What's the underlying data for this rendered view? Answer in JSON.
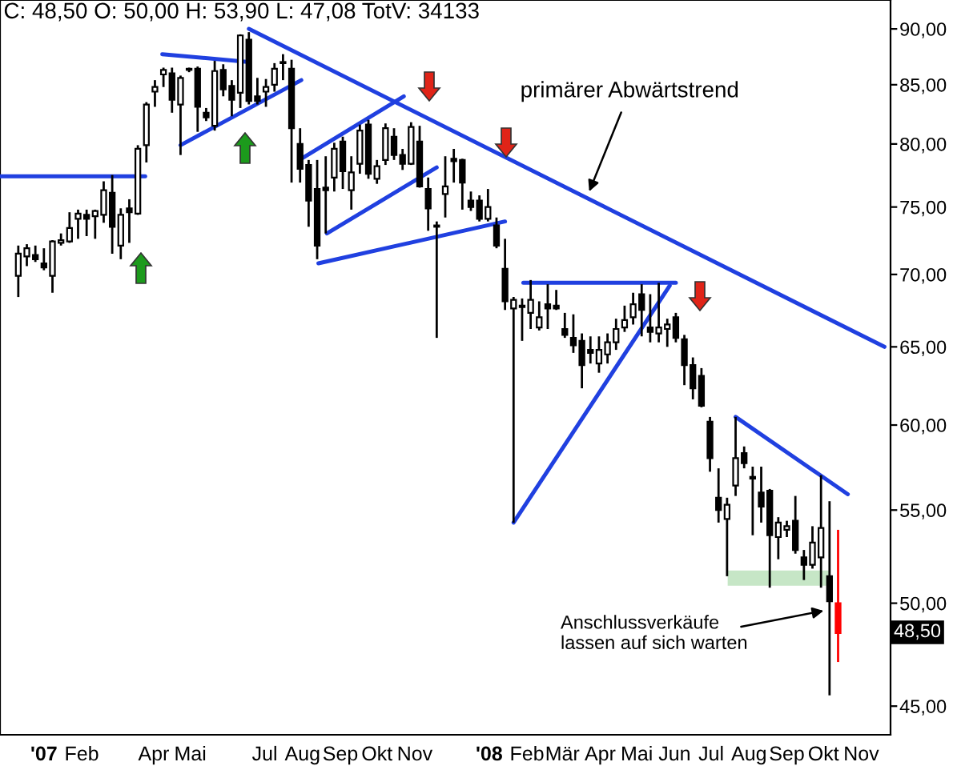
{
  "chart_data": {
    "type": "candlestick",
    "title": "C: 48,50 O: 50,00 H: 53,90 L: 47,08 TotV: 34133",
    "x": [
      "2006-12-11",
      "2006-12-18",
      "2006-12-25",
      "2007-01-01",
      "2007-01-08",
      "2007-01-15",
      "2007-01-22",
      "2007-01-29",
      "2007-02-05",
      "2007-02-12",
      "2007-02-19",
      "2007-02-26",
      "2007-03-05",
      "2007-03-12",
      "2007-03-19",
      "2007-03-26",
      "2007-04-02",
      "2007-04-09",
      "2007-04-16",
      "2007-04-23",
      "2007-04-30",
      "2007-05-07",
      "2007-05-14",
      "2007-05-21",
      "2007-05-28",
      "2007-06-04",
      "2007-06-11",
      "2007-06-18",
      "2007-06-25",
      "2007-07-02",
      "2007-07-09",
      "2007-07-16",
      "2007-07-23",
      "2007-07-30",
      "2007-08-06",
      "2007-08-13",
      "2007-08-20",
      "2007-08-27",
      "2007-09-03",
      "2007-09-10",
      "2007-09-17",
      "2007-09-24",
      "2007-10-01",
      "2007-10-08",
      "2007-10-15",
      "2007-10-22",
      "2007-10-29",
      "2007-11-05",
      "2007-11-12",
      "2007-11-19",
      "2007-11-26",
      "2007-12-03",
      "2007-12-10",
      "2007-12-17",
      "2007-12-24",
      "2007-12-31",
      "2008-01-07",
      "2008-01-14",
      "2008-01-21",
      "2008-01-28",
      "2008-02-04",
      "2008-02-11",
      "2008-02-18",
      "2008-02-25",
      "2008-03-03",
      "2008-03-10",
      "2008-03-17",
      "2008-03-24",
      "2008-03-31",
      "2008-04-07",
      "2008-04-14",
      "2008-04-21",
      "2008-04-28",
      "2008-05-05",
      "2008-05-12",
      "2008-05-19",
      "2008-05-26",
      "2008-06-02",
      "2008-06-09",
      "2008-06-16",
      "2008-06-23",
      "2008-06-30",
      "2008-07-07",
      "2008-07-14",
      "2008-07-21",
      "2008-07-28",
      "2008-08-04",
      "2008-08-11",
      "2008-08-18",
      "2008-08-25",
      "2008-09-01",
      "2008-09-08",
      "2008-09-15",
      "2008-09-22",
      "2008-09-29",
      "2008-10-06",
      "2008-10-13"
    ],
    "ohlc": [
      [
        69.9,
        72.1,
        68.4,
        71.5
      ],
      [
        71.3,
        72.2,
        70.6,
        71.9
      ],
      [
        71.4,
        72.1,
        70.9,
        71.1
      ],
      [
        70.8,
        71.9,
        70.3,
        70.5
      ],
      [
        69.9,
        72.5,
        68.7,
        72.4
      ],
      [
        72.3,
        73.0,
        72.1,
        72.5
      ],
      [
        72.4,
        74.6,
        72.3,
        73.4
      ],
      [
        74.1,
        74.8,
        72.6,
        74.5
      ],
      [
        74.4,
        74.8,
        72.8,
        74.1
      ],
      [
        74.3,
        74.8,
        72.6,
        74.7
      ],
      [
        74.4,
        77.0,
        73.8,
        76.3
      ],
      [
        76.1,
        77.5,
        71.5,
        73.5
      ],
      [
        72.1,
        74.9,
        71.1,
        74.4
      ],
      [
        74.9,
        75.6,
        72.3,
        74.6
      ],
      [
        74.5,
        79.9,
        74.4,
        79.6
      ],
      [
        79.9,
        83.5,
        78.5,
        83.3
      ],
      [
        84.4,
        85.4,
        83.1,
        84.8
      ],
      [
        85.9,
        86.5,
        84.8,
        86.3
      ],
      [
        86.0,
        86.5,
        82.6,
        83.7
      ],
      [
        83.3,
        85.8,
        79.1,
        85.6
      ],
      [
        86.4,
        86.5,
        86.1,
        86.3
      ],
      [
        86.4,
        86.6,
        81.0,
        83.1
      ],
      [
        82.6,
        83.0,
        81.9,
        82.2
      ],
      [
        81.5,
        87.1,
        81.1,
        86.2
      ],
      [
        86.3,
        86.8,
        84.0,
        84.6
      ],
      [
        84.9,
        85.4,
        82.3,
        83.7
      ],
      [
        84.3,
        89.5,
        83.0,
        89.4
      ],
      [
        89.0,
        89.7,
        83.3,
        83.6
      ],
      [
        84.0,
        85.6,
        83.3,
        83.6
      ],
      [
        84.4,
        85.5,
        83.1,
        84.8
      ],
      [
        85.0,
        86.9,
        84.4,
        86.4
      ],
      [
        86.9,
        87.7,
        85.4,
        87.0
      ],
      [
        86.4,
        87.2,
        76.9,
        81.3
      ],
      [
        80.0,
        81.3,
        76.9,
        78.0
      ],
      [
        78.3,
        78.7,
        73.5,
        75.5
      ],
      [
        76.4,
        78.7,
        71.1,
        72.1
      ],
      [
        76.5,
        79.0,
        73.0,
        76.3
      ],
      [
        77.3,
        80.1,
        76.2,
        79.6
      ],
      [
        80.2,
        80.6,
        76.4,
        77.8
      ],
      [
        76.3,
        79.0,
        74.8,
        77.7
      ],
      [
        78.4,
        81.6,
        77.6,
        81.1
      ],
      [
        81.6,
        82.0,
        77.2,
        77.6
      ],
      [
        77.2,
        78.7,
        76.8,
        78.2
      ],
      [
        78.7,
        81.7,
        78.3,
        81.3
      ],
      [
        80.6,
        81.3,
        78.7,
        79.1
      ],
      [
        79.1,
        79.6,
        77.9,
        78.4
      ],
      [
        78.4,
        81.8,
        78.3,
        81.4
      ],
      [
        80.2,
        81.5,
        76.5,
        76.6
      ],
      [
        76.4,
        77.3,
        73.2,
        74.9
      ],
      [
        73.6,
        73.9,
        65.6,
        73.5
      ],
      [
        76.0,
        79.0,
        74.2,
        76.6
      ],
      [
        78.8,
        79.6,
        76.9,
        78.6
      ],
      [
        78.7,
        78.8,
        74.8,
        76.9
      ],
      [
        75.5,
        76.2,
        74.7,
        75.0
      ],
      [
        75.5,
        75.9,
        73.9,
        74.1
      ],
      [
        74.1,
        76.4,
        73.9,
        75.0
      ],
      [
        73.6,
        74.2,
        71.9,
        72.1
      ],
      [
        70.4,
        72.6,
        67.5,
        68.1
      ],
      [
        67.6,
        68.4,
        54.3,
        68.2
      ],
      [
        67.7,
        68.3,
        65.4,
        67.8
      ],
      [
        67.3,
        69.6,
        66.2,
        68.2
      ],
      [
        66.3,
        68.1,
        66.1,
        67.0
      ],
      [
        67.9,
        69.3,
        66.2,
        67.6
      ],
      [
        67.8,
        68.9,
        67.5,
        67.6
      ],
      [
        66.2,
        67.3,
        65.6,
        65.8
      ],
      [
        65.6,
        67.2,
        64.6,
        65.1
      ],
      [
        65.4,
        65.9,
        62.3,
        63.8
      ],
      [
        64.8,
        65.7,
        63.9,
        64.6
      ],
      [
        63.9,
        65.7,
        63.3,
        64.8
      ],
      [
        64.5,
        65.9,
        63.9,
        65.3
      ],
      [
        65.3,
        66.9,
        64.8,
        66.2
      ],
      [
        66.3,
        67.8,
        66.0,
        66.8
      ],
      [
        67.0,
        68.7,
        66.5,
        67.9
      ],
      [
        68.6,
        69.3,
        65.7,
        67.5
      ],
      [
        66.3,
        68.6,
        65.3,
        66.0
      ],
      [
        65.9,
        69.4,
        65.3,
        66.3
      ],
      [
        66.2,
        66.9,
        65.0,
        66.5
      ],
      [
        67.0,
        67.3,
        65.3,
        65.6
      ],
      [
        65.5,
        65.8,
        62.5,
        63.8
      ],
      [
        63.8,
        64.3,
        61.6,
        62.3
      ],
      [
        63.1,
        63.6,
        61.1,
        61.2
      ],
      [
        60.2,
        60.5,
        57.2,
        58.0
      ],
      [
        55.7,
        57.4,
        54.3,
        55.0
      ],
      [
        54.5,
        55.7,
        51.4,
        55.3
      ],
      [
        56.4,
        60.5,
        55.8,
        58.0
      ],
      [
        58.3,
        58.7,
        57.4,
        57.7
      ],
      [
        56.9,
        57.5,
        53.6,
        56.8
      ],
      [
        56.0,
        57.5,
        54.3,
        55.2
      ],
      [
        56.1,
        56.2,
        50.8,
        53.6
      ],
      [
        53.5,
        54.6,
        52.3,
        54.3
      ],
      [
        53.9,
        54.4,
        53.5,
        54.1
      ],
      [
        54.4,
        55.8,
        52.6,
        52.8
      ],
      [
        52.4,
        52.8,
        51.2,
        52.0
      ],
      [
        52.0,
        54.1,
        51.8,
        53.2
      ],
      [
        52.4,
        57.0,
        50.8,
        54.0
      ],
      [
        51.4,
        55.5,
        45.5,
        50.1
      ],
      [
        50.0,
        53.9,
        47.08,
        48.5
      ]
    ],
    "colors": [
      "#ffffff",
      "#ffffff",
      "#000000",
      "#000000",
      "#ffffff",
      "#ffffff",
      "#ffffff",
      "#ffffff",
      "#000000",
      "#ffffff",
      "#ffffff",
      "#000000",
      "#ffffff",
      "#000000",
      "#ffffff",
      "#ffffff",
      "#ffffff",
      "#ffffff",
      "#000000",
      "#ffffff",
      "#000000",
      "#000000",
      "#000000",
      "#ffffff",
      "#000000",
      "#000000",
      "#ffffff",
      "#000000",
      "#000000",
      "#ffffff",
      "#ffffff",
      "#ffffff",
      "#000000",
      "#000000",
      "#000000",
      "#000000",
      "#000000",
      "#ffffff",
      "#000000",
      "#ffffff",
      "#ffffff",
      "#000000",
      "#ffffff",
      "#ffffff",
      "#000000",
      "#000000",
      "#ffffff",
      "#000000",
      "#000000",
      "#000000",
      "#ffffff",
      "#000000",
      "#000000",
      "#000000",
      "#000000",
      "#ffffff",
      "#000000",
      "#000000",
      "#ffffff",
      "#ffffff",
      "#ffffff",
      "#ffffff",
      "#000000",
      "#000000",
      "#000000",
      "#000000",
      "#000000",
      "#000000",
      "#ffffff",
      "#ffffff",
      "#ffffff",
      "#ffffff",
      "#ffffff",
      "#000000",
      "#000000",
      "#ffffff",
      "#ffffff",
      "#000000",
      "#000000",
      "#000000",
      "#000000",
      "#000000",
      "#000000",
      "#ffffff",
      "#ffffff",
      "#000000",
      "#000000",
      "#000000",
      "#000000",
      "#ffffff",
      "#ffffff",
      "#000000",
      "#000000",
      "#ffffff",
      "#ffffff",
      "#000000",
      "#ff0000"
    ],
    "series": [
      {
        "type": "bar",
        "x": [
          "2008-08-25"
        ],
        "values": [
          0.8
        ],
        "base": [
          50.9
        ],
        "color": "#c6e6c6"
      },
      {
        "type": "line",
        "x": [
          "2006-11-26",
          "2007-03-25"
        ],
        "values": [
          77.4,
          77.4
        ],
        "color": "#2040e0"
      },
      {
        "type": "line",
        "x": [
          "2007-04-08",
          "2007-06-18"
        ],
        "values": [
          87.7,
          87.0
        ],
        "color": "#2040e0"
      },
      {
        "type": "line",
        "x": [
          "2007-04-23",
          "2007-07-31"
        ],
        "values": [
          79.9,
          85.4
        ],
        "color": "#2040e0"
      },
      {
        "type": "line",
        "x": [
          "2007-06-18",
          "2008-11-20"
        ],
        "values": [
          90.0,
          65.0
        ],
        "color": "#2040e0"
      },
      {
        "type": "line",
        "x": [
          "2007-07-31",
          "2007-10-23"
        ],
        "values": [
          78.8,
          84.0
        ],
        "color": "#2040e0"
      },
      {
        "type": "line",
        "x": [
          "2007-08-21",
          "2007-11-19"
        ],
        "values": [
          73.0,
          78.1
        ],
        "color": "#2040e0"
      },
      {
        "type": "line",
        "x": [
          "2007-08-14",
          "2008-01-14"
        ],
        "values": [
          70.8,
          73.9
        ],
        "color": "#2040e0"
      },
      {
        "type": "line",
        "x": [
          "2008-01-29",
          "2008-06-02"
        ],
        "values": [
          69.4,
          69.4
        ],
        "color": "#2040e0"
      },
      {
        "type": "line",
        "x": [
          "2008-01-21",
          "2008-05-28"
        ],
        "values": [
          54.3,
          69.2
        ],
        "color": "#2040e0"
      },
      {
        "type": "line",
        "x": [
          "2008-07-21",
          "2008-10-21"
        ],
        "values": [
          60.5,
          55.9
        ],
        "color": "#2040e0"
      }
    ],
    "annotations": [
      {
        "text": "primärer Abwärtstrend",
        "x": "2008-03-23",
        "y": 76.2
      },
      "Anschlussverkäufe\nlassen auf sich warten",
      "48,50"
    ],
    "log": "y",
    "xlim": [
      "2006-11-26",
      "2008-11-25"
    ],
    "xticks": [
      {
        "value": "2007-01-01",
        "label": "'07"
      },
      {
        "value": "2007-02-01",
        "label": "Feb"
      },
      {
        "value": "2007-04-01",
        "label": "Apr"
      },
      {
        "value": "2007-05-01",
        "label": "Mai"
      },
      {
        "value": "2007-07-01",
        "label": "Jul"
      },
      {
        "value": "2007-08-01",
        "label": "Aug"
      },
      {
        "value": "2007-09-01",
        "label": "Sep"
      },
      {
        "value": "2007-10-01",
        "label": "Okt"
      },
      {
        "value": "2007-11-01",
        "label": "Nov"
      },
      {
        "value": "2008-01-01",
        "label": "'08"
      },
      {
        "value": "2008-02-01",
        "label": "Feb"
      },
      {
        "value": "2008-03-01",
        "label": "Mär"
      },
      {
        "value": "2008-04-01",
        "label": "Apr"
      },
      {
        "value": "2008-05-01",
        "label": "Mai"
      },
      {
        "value": "2008-06-01",
        "label": "Jun"
      },
      {
        "value": "2008-07-01",
        "label": "Jul"
      },
      {
        "value": "2008-08-01",
        "label": "Aug"
      },
      {
        "value": "2008-09-01",
        "label": "Sep"
      },
      {
        "value": "2008-10-01",
        "label": "Okt"
      },
      {
        "value": "2008-11-01",
        "label": "Nov"
      }
    ],
    "ylim": [
      43.7,
      92.7
    ],
    "yticks": [
      {
        "value": 45,
        "label": "45,00"
      },
      {
        "value": 50,
        "label": "50,00"
      },
      {
        "value": 55,
        "label": "55,00"
      },
      {
        "value": 60,
        "label": "60,00"
      },
      {
        "value": 65,
        "label": "65,00"
      },
      {
        "value": 70,
        "label": "70,00"
      },
      {
        "value": 75,
        "label": "75,00"
      },
      {
        "value": 80,
        "label": "80,00"
      },
      {
        "value": 85,
        "label": "85,00"
      },
      {
        "value": 90,
        "label": "90,00"
      }
    ]
  }
}
